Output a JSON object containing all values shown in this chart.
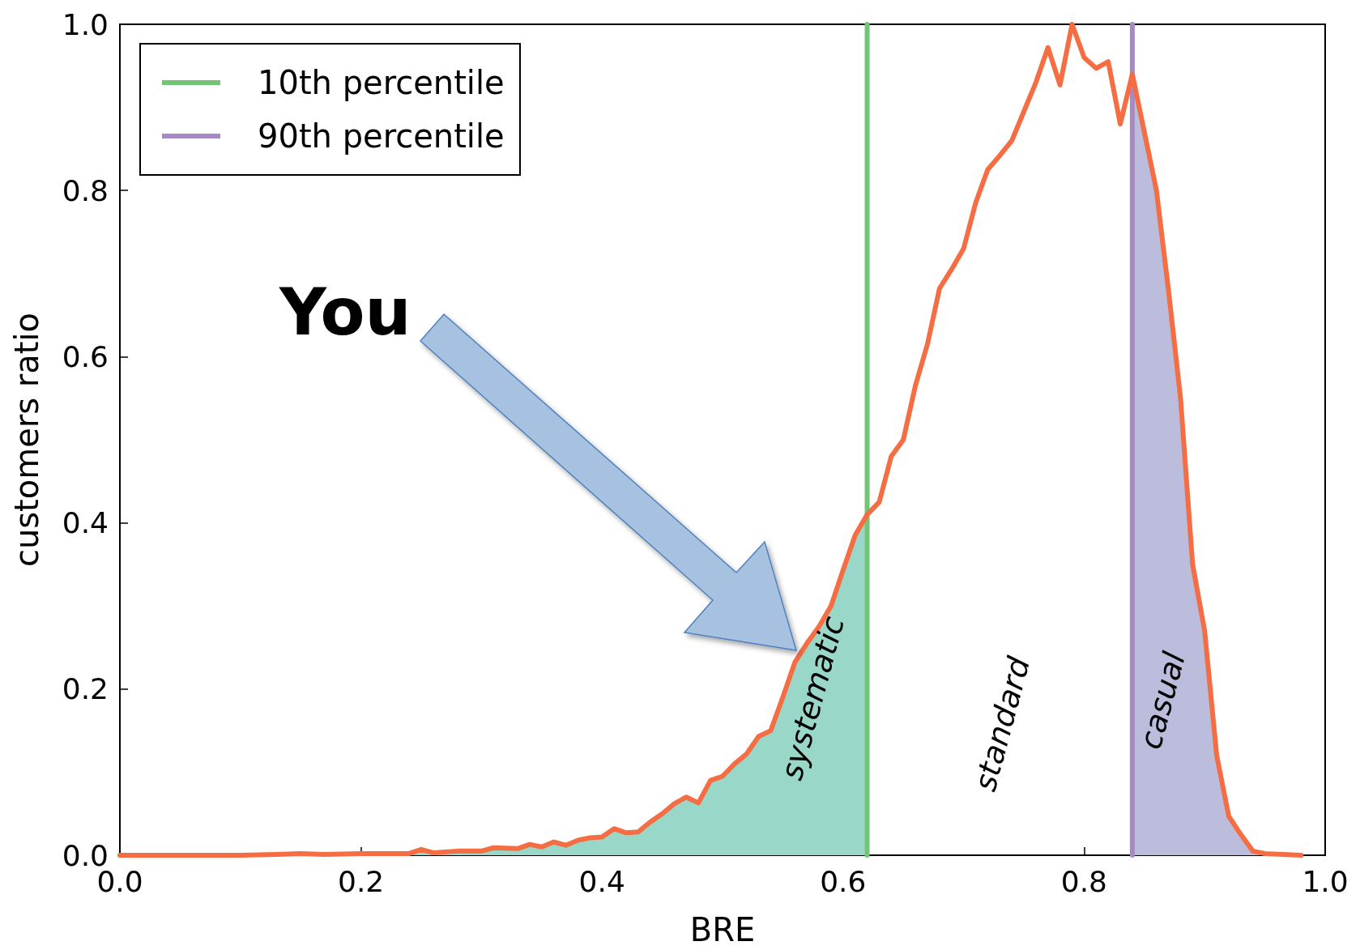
{
  "chart_data": {
    "type": "line",
    "xlabel": "BRE",
    "ylabel": "customers ratio",
    "x": [
      0,
      0.05,
      0.1,
      0.13,
      0.15,
      0.17,
      0.2,
      0.22,
      0.24,
      0.25,
      0.26,
      0.28,
      0.3,
      0.31,
      0.33,
      0.34,
      0.35,
      0.36,
      0.37,
      0.38,
      0.39,
      0.4,
      0.41,
      0.42,
      0.43,
      0.44,
      0.45,
      0.46,
      0.47,
      0.48,
      0.49,
      0.5,
      0.51,
      0.52,
      0.53,
      0.54,
      0.55,
      0.56,
      0.57,
      0.58,
      0.59,
      0.6,
      0.61,
      0.62,
      0.63,
      0.64,
      0.65,
      0.66,
      0.67,
      0.68,
      0.69,
      0.7,
      0.71,
      0.72,
      0.73,
      0.74,
      0.75,
      0.76,
      0.77,
      0.78,
      0.79,
      0.8,
      0.81,
      0.82,
      0.83,
      0.84,
      0.85,
      0.86,
      0.87,
      0.88,
      0.89,
      0.9,
      0.91,
      0.92,
      0.93,
      0.94,
      0.95,
      0.98
    ],
    "series": [
      {
        "type": "area",
        "color": "#99d8c9",
        "x": [
          0,
          0.05,
          0.1,
          0.13,
          0.15,
          0.17,
          0.2,
          0.22,
          0.24,
          0.25,
          0.26,
          0.28,
          0.3,
          0.31,
          0.33,
          0.34,
          0.35,
          0.36,
          0.37,
          0.38,
          0.39,
          0.4,
          0.41,
          0.42,
          0.43,
          0.44,
          0.45,
          0.46,
          0.47,
          0.48,
          0.49,
          0.5,
          0.51,
          0.52,
          0.53,
          0.54,
          0.55,
          0.56,
          0.57,
          0.58,
          0.59,
          0.6,
          0.61,
          0.62
        ],
        "values": [
          0,
          0,
          0,
          0.001,
          0.002,
          0.001,
          0.002,
          0.002,
          0.002,
          0.007,
          0.003,
          0.005,
          0.005,
          0.009,
          0.008,
          0.013,
          0.01,
          0.016,
          0.012,
          0.018,
          0.021,
          0.022,
          0.032,
          0.027,
          0.028,
          0.04,
          0.05,
          0.062,
          0.07,
          0.063,
          0.09,
          0.095,
          0.11,
          0.122,
          0.143,
          0.15,
          0.19,
          0.232,
          0.255,
          0.275,
          0.3,
          0.343,
          0.385,
          0.41
        ]
      },
      {
        "type": "area",
        "color": "#bcbddc",
        "x": [
          0.84,
          0.85,
          0.86,
          0.87,
          0.88,
          0.89,
          0.9,
          0.91,
          0.92,
          0.93,
          0.94,
          0.95,
          0.98
        ],
        "values": [
          0.94,
          0.87,
          0.8,
          0.68,
          0.55,
          0.35,
          0.27,
          0.12,
          0.047,
          0.025,
          0.005,
          0.002,
          0
        ]
      },
      {
        "type": "line",
        "name": "10th percentile",
        "color": "#74c476",
        "x": [
          0.62,
          0.62
        ],
        "values": [
          0,
          1
        ]
      },
      {
        "type": "line",
        "name": "90th percentile",
        "color": "#a68bc2",
        "x": [
          0.84,
          0.84
        ],
        "values": [
          0,
          1
        ]
      },
      {
        "color": "#f46d43",
        "values": [
          0,
          0,
          0,
          0.001,
          0.002,
          0.001,
          0.002,
          0.002,
          0.002,
          0.007,
          0.003,
          0.005,
          0.005,
          0.009,
          0.008,
          0.013,
          0.01,
          0.016,
          0.012,
          0.018,
          0.021,
          0.022,
          0.032,
          0.027,
          0.028,
          0.04,
          0.05,
          0.062,
          0.07,
          0.063,
          0.09,
          0.095,
          0.11,
          0.122,
          0.143,
          0.15,
          0.19,
          0.232,
          0.255,
          0.275,
          0.3,
          0.343,
          0.385,
          0.41,
          0.425,
          0.48,
          0.5,
          0.565,
          0.615,
          0.682,
          0.705,
          0.73,
          0.785,
          0.825,
          0.842,
          0.86,
          0.895,
          0.93,
          0.972,
          0.927,
          1.0,
          0.96,
          0.947,
          0.955,
          0.88,
          0.94,
          0.87,
          0.8,
          0.68,
          0.55,
          0.35,
          0.27,
          0.12,
          0.047,
          0.025,
          0.005,
          0.002,
          0
        ]
      }
    ],
    "xlim": [
      0,
      1
    ],
    "xticks": [
      {
        "value": 0,
        "label": "0.0"
      },
      {
        "value": 0.2,
        "label": "0.2"
      },
      {
        "value": 0.4,
        "label": "0.4"
      },
      {
        "value": 0.6,
        "label": "0.6"
      },
      {
        "value": 0.8,
        "label": "0.8"
      },
      {
        "value": 1,
        "label": "1.0"
      }
    ],
    "ylim": [
      0,
      1
    ],
    "yticks": [
      {
        "value": 0,
        "label": "0.0"
      },
      {
        "value": 0.2,
        "label": "0.2"
      },
      {
        "value": 0.4,
        "label": "0.4"
      },
      {
        "value": 0.6,
        "label": "0.6"
      },
      {
        "value": 0.8,
        "label": "0.8"
      },
      {
        "value": 1,
        "label": "1.0"
      }
    ],
    "annotations": [
      "You",
      "systematic",
      "standard",
      "casual"
    ],
    "grid": false,
    "legend": "top left",
    "marker": "none",
    "line_style": "solid"
  }
}
